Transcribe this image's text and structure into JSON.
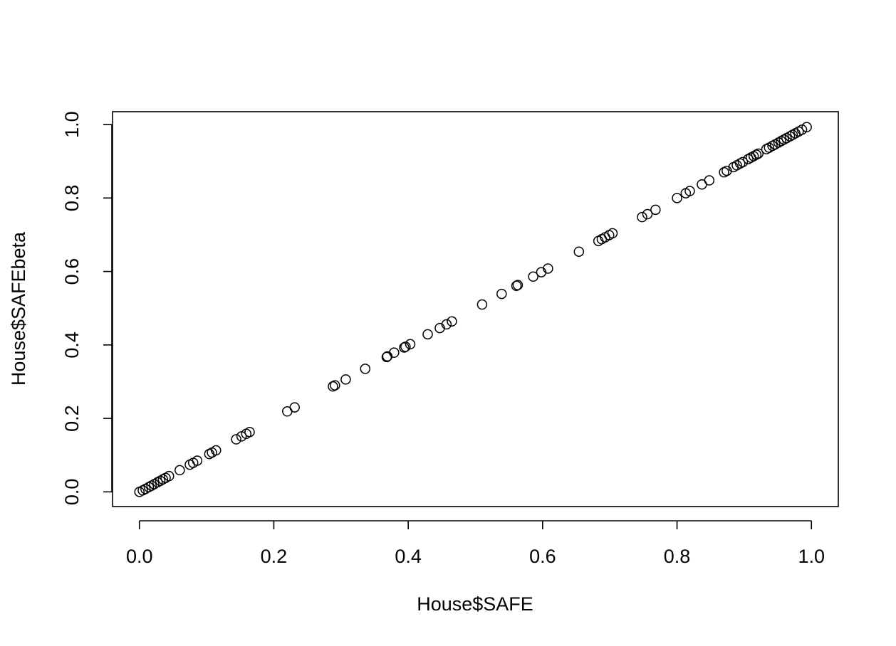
{
  "chart_data": {
    "type": "scatter",
    "title": "",
    "xlabel": "House$SAFE",
    "ylabel": "House$SAFEbeta",
    "xlim": [
      -0.04,
      1.04
    ],
    "ylim": [
      -0.04,
      1.035
    ],
    "x_ticks": [
      "0.0",
      "0.2",
      "0.4",
      "0.6",
      "0.8",
      "1.0"
    ],
    "y_ticks": [
      "0.0",
      "0.2",
      "0.4",
      "0.6",
      "0.8",
      "1.0"
    ],
    "grid": false,
    "legend": "none",
    "point_style": "open-circle",
    "point_color": "#000000",
    "points": [
      [
        0.0,
        0.0
      ],
      [
        0.005,
        0.004
      ],
      [
        0.009,
        0.008
      ],
      [
        0.014,
        0.013
      ],
      [
        0.018,
        0.017
      ],
      [
        0.022,
        0.021
      ],
      [
        0.027,
        0.026
      ],
      [
        0.031,
        0.03
      ],
      [
        0.035,
        0.034
      ],
      [
        0.039,
        0.038
      ],
      [
        0.044,
        0.043
      ],
      [
        0.06,
        0.059
      ],
      [
        0.075,
        0.074
      ],
      [
        0.08,
        0.079
      ],
      [
        0.086,
        0.085
      ],
      [
        0.104,
        0.103
      ],
      [
        0.108,
        0.107
      ],
      [
        0.114,
        0.113
      ],
      [
        0.144,
        0.143
      ],
      [
        0.152,
        0.151
      ],
      [
        0.159,
        0.158
      ],
      [
        0.164,
        0.163
      ],
      [
        0.22,
        0.219
      ],
      [
        0.231,
        0.23
      ],
      [
        0.288,
        0.287
      ],
      [
        0.291,
        0.29
      ],
      [
        0.307,
        0.306
      ],
      [
        0.336,
        0.335
      ],
      [
        0.368,
        0.367
      ],
      [
        0.369,
        0.369
      ],
      [
        0.379,
        0.379
      ],
      [
        0.394,
        0.393
      ],
      [
        0.396,
        0.395
      ],
      [
        0.403,
        0.402
      ],
      [
        0.429,
        0.429
      ],
      [
        0.447,
        0.446
      ],
      [
        0.457,
        0.456
      ],
      [
        0.465,
        0.464
      ],
      [
        0.51,
        0.51
      ],
      [
        0.539,
        0.539
      ],
      [
        0.561,
        0.561
      ],
      [
        0.563,
        0.563
      ],
      [
        0.586,
        0.586
      ],
      [
        0.598,
        0.598
      ],
      [
        0.608,
        0.608
      ],
      [
        0.654,
        0.654
      ],
      [
        0.683,
        0.683
      ],
      [
        0.688,
        0.688
      ],
      [
        0.693,
        0.693
      ],
      [
        0.699,
        0.699
      ],
      [
        0.704,
        0.704
      ],
      [
        0.748,
        0.748
      ],
      [
        0.756,
        0.756
      ],
      [
        0.768,
        0.768
      ],
      [
        0.8,
        0.8
      ],
      [
        0.813,
        0.813
      ],
      [
        0.819,
        0.819
      ],
      [
        0.837,
        0.837
      ],
      [
        0.848,
        0.848
      ],
      [
        0.87,
        0.87
      ],
      [
        0.874,
        0.874
      ],
      [
        0.884,
        0.884
      ],
      [
        0.889,
        0.889
      ],
      [
        0.894,
        0.894
      ],
      [
        0.898,
        0.898
      ],
      [
        0.906,
        0.906
      ],
      [
        0.91,
        0.91
      ],
      [
        0.914,
        0.914
      ],
      [
        0.918,
        0.918
      ],
      [
        0.921,
        0.921
      ],
      [
        0.933,
        0.933
      ],
      [
        0.937,
        0.937
      ],
      [
        0.942,
        0.942
      ],
      [
        0.946,
        0.946
      ],
      [
        0.951,
        0.951
      ],
      [
        0.955,
        0.955
      ],
      [
        0.959,
        0.959
      ],
      [
        0.963,
        0.963
      ],
      [
        0.968,
        0.968
      ],
      [
        0.972,
        0.972
      ],
      [
        0.976,
        0.976
      ],
      [
        0.981,
        0.981
      ],
      [
        0.986,
        0.986
      ],
      [
        0.993,
        0.993
      ]
    ]
  }
}
